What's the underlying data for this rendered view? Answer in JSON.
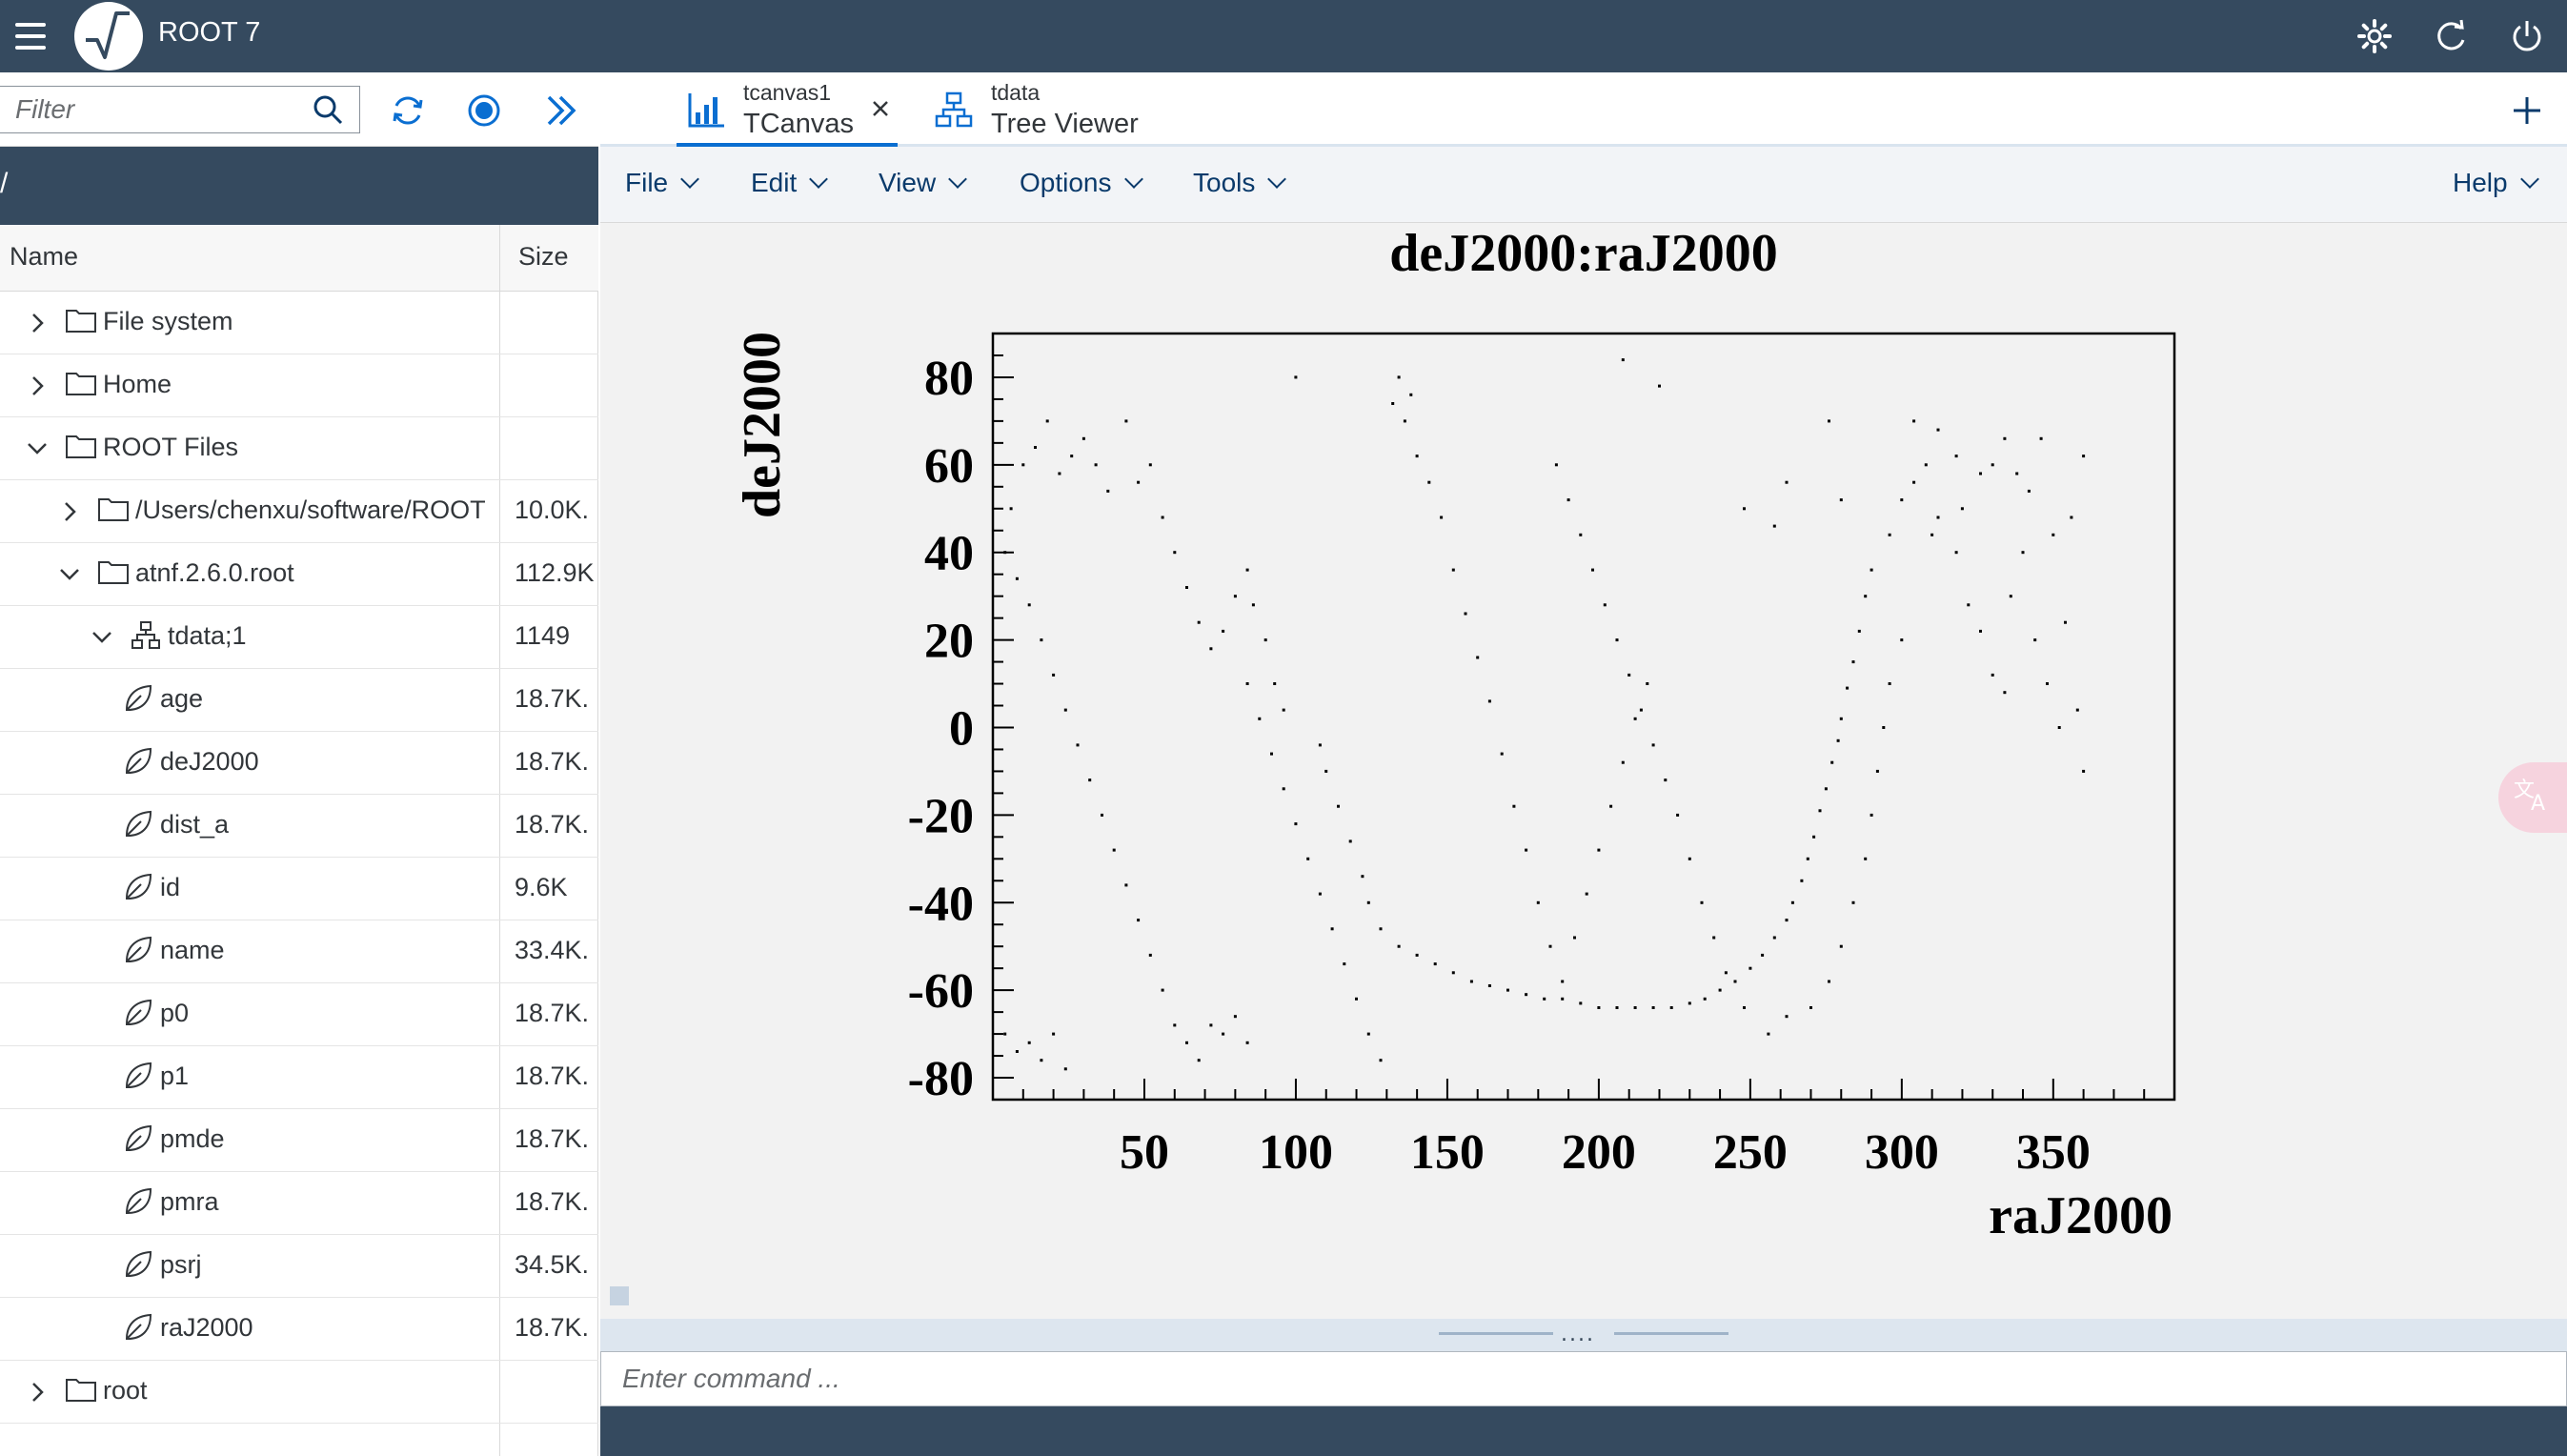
{
  "shell": {
    "title": "ROOT 7"
  },
  "toolbar": {
    "filter_placeholder": "Filter"
  },
  "path": "/",
  "tree": {
    "col_name": "Name",
    "col_size": "Size",
    "rows": [
      {
        "label": "File system",
        "size": "",
        "depth": 0,
        "expander": "collapsed",
        "icon": "folder-icon"
      },
      {
        "label": "Home",
        "size": "",
        "depth": 0,
        "expander": "collapsed",
        "icon": "folder-icon"
      },
      {
        "label": "ROOT Files",
        "size": "",
        "depth": 0,
        "expander": "expanded",
        "icon": "folder-icon"
      },
      {
        "label": "/Users/chenxu/software/ROOT",
        "size": "10.0K.",
        "depth": 1,
        "expander": "collapsed",
        "icon": "folder-icon"
      },
      {
        "label": "atnf.2.6.0.root",
        "size": "112.9K",
        "depth": 1,
        "expander": "expanded",
        "icon": "folder-icon"
      },
      {
        "label": "tdata;1",
        "size": "1149",
        "depth": 2,
        "expander": "expanded",
        "icon": "tree-icon"
      },
      {
        "label": "age",
        "size": "18.7K.",
        "depth": 3,
        "expander": "none",
        "icon": "leaf-icon"
      },
      {
        "label": "deJ2000",
        "size": "18.7K.",
        "depth": 3,
        "expander": "none",
        "icon": "leaf-icon"
      },
      {
        "label": "dist_a",
        "size": "18.7K.",
        "depth": 3,
        "expander": "none",
        "icon": "leaf-icon"
      },
      {
        "label": "id",
        "size": "9.6K",
        "depth": 3,
        "expander": "none",
        "icon": "leaf-icon"
      },
      {
        "label": "name",
        "size": "33.4K.",
        "depth": 3,
        "expander": "none",
        "icon": "leaf-icon"
      },
      {
        "label": "p0",
        "size": "18.7K.",
        "depth": 3,
        "expander": "none",
        "icon": "leaf-icon"
      },
      {
        "label": "p1",
        "size": "18.7K.",
        "depth": 3,
        "expander": "none",
        "icon": "leaf-icon"
      },
      {
        "label": "pmde",
        "size": "18.7K.",
        "depth": 3,
        "expander": "none",
        "icon": "leaf-icon"
      },
      {
        "label": "pmra",
        "size": "18.7K.",
        "depth": 3,
        "expander": "none",
        "icon": "leaf-icon"
      },
      {
        "label": "psrj",
        "size": "34.5K.",
        "depth": 3,
        "expander": "none",
        "icon": "leaf-icon"
      },
      {
        "label": "raJ2000",
        "size": "18.7K.",
        "depth": 3,
        "expander": "none",
        "icon": "leaf-icon"
      },
      {
        "label": "root",
        "size": "",
        "depth": 0,
        "expander": "collapsed",
        "icon": "folder-icon"
      }
    ]
  },
  "tabs": [
    {
      "sub": "tcanvas1",
      "main": "TCanvas",
      "icon": "bar-chart-icon",
      "active": true
    },
    {
      "sub": "tdata",
      "main": "Tree Viewer",
      "icon": "hierarchy-icon",
      "active": false
    }
  ],
  "menus": {
    "file": "File",
    "edit": "Edit",
    "view": "View",
    "options": "Options",
    "tools": "Tools",
    "help": "Help"
  },
  "command": {
    "placeholder": "Enter command ..."
  },
  "splitter": {
    "handle": "...."
  },
  "colors": {
    "shell": "#354a5f",
    "accent": "#0a6ed1",
    "menu_text": "#0a3a6b",
    "canvas_bg": "#f2f2f2"
  },
  "chart_data": {
    "type": "scatter",
    "title": "deJ2000:raJ2000",
    "xlabel": "raJ2000",
    "ylabel": "deJ2000",
    "xlim": [
      0,
      390
    ],
    "ylim": [
      -85,
      90
    ],
    "xticks": [
      50,
      100,
      150,
      200,
      250,
      300,
      350
    ],
    "yticks": [
      80,
      60,
      40,
      20,
      0,
      -20,
      -40,
      -60,
      -80
    ],
    "grid": false,
    "legend": "none",
    "points": [
      [
        290,
        36
      ],
      [
        288,
        30
      ],
      [
        286,
        22
      ],
      [
        284,
        15
      ],
      [
        282,
        9
      ],
      [
        280,
        2
      ],
      [
        279,
        -3
      ],
      [
        277,
        -8
      ],
      [
        275,
        -14
      ],
      [
        273,
        -19
      ],
      [
        271,
        -25
      ],
      [
        269,
        -30
      ],
      [
        267,
        -35
      ],
      [
        264,
        -40
      ],
      [
        262,
        -44
      ],
      [
        258,
        -48
      ],
      [
        254,
        -52
      ],
      [
        250,
        -55
      ],
      [
        245,
        -58
      ],
      [
        240,
        -60
      ],
      [
        235,
        -62
      ],
      [
        230,
        -63
      ],
      [
        224,
        -64
      ],
      [
        218,
        -64
      ],
      [
        212,
        -64
      ],
      [
        206,
        -64
      ],
      [
        200,
        -64
      ],
      [
        194,
        -63
      ],
      [
        188,
        -62
      ],
      [
        182,
        -62
      ],
      [
        176,
        -61
      ],
      [
        170,
        -60
      ],
      [
        164,
        -59
      ],
      [
        158,
        -58
      ],
      [
        152,
        -56
      ],
      [
        146,
        -54
      ],
      [
        140,
        -52
      ],
      [
        134,
        -50
      ],
      [
        128,
        -46
      ],
      [
        124,
        -40
      ],
      [
        122,
        -34
      ],
      [
        118,
        -26
      ],
      [
        114,
        -18
      ],
      [
        110,
        -10
      ],
      [
        108,
        -4
      ],
      [
        96,
        4
      ],
      [
        93,
        10
      ],
      [
        90,
        20
      ],
      [
        86,
        28
      ],
      [
        84,
        36
      ],
      [
        296,
        44
      ],
      [
        300,
        52
      ],
      [
        304,
        56
      ],
      [
        308,
        60
      ],
      [
        312,
        48
      ],
      [
        318,
        40
      ],
      [
        322,
        28
      ],
      [
        326,
        22
      ],
      [
        330,
        12
      ],
      [
        334,
        8
      ],
      [
        336,
        30
      ],
      [
        340,
        40
      ],
      [
        344,
        20
      ],
      [
        348,
        10
      ],
      [
        352,
        0
      ],
      [
        356,
        48
      ],
      [
        360,
        62
      ],
      [
        346,
        66
      ],
      [
        338,
        58
      ],
      [
        330,
        60
      ],
      [
        320,
        50
      ],
      [
        310,
        44
      ],
      [
        300,
        20
      ],
      [
        296,
        10
      ],
      [
        294,
        0
      ],
      [
        292,
        -10
      ],
      [
        290,
        -20
      ],
      [
        288,
        -30
      ],
      [
        284,
        -40
      ],
      [
        280,
        -50
      ],
      [
        276,
        -58
      ],
      [
        270,
        -64
      ],
      [
        262,
        -66
      ],
      [
        256,
        -70
      ],
      [
        248,
        -64
      ],
      [
        242,
        -56
      ],
      [
        238,
        -48
      ],
      [
        234,
        -40
      ],
      [
        230,
        -30
      ],
      [
        226,
        -20
      ],
      [
        222,
        -12
      ],
      [
        218,
        -4
      ],
      [
        214,
        4
      ],
      [
        210,
        12
      ],
      [
        206,
        20
      ],
      [
        202,
        28
      ],
      [
        198,
        36
      ],
      [
        194,
        44
      ],
      [
        190,
        52
      ],
      [
        186,
        60
      ],
      [
        10,
        60
      ],
      [
        14,
        64
      ],
      [
        18,
        70
      ],
      [
        22,
        58
      ],
      [
        26,
        62
      ],
      [
        30,
        66
      ],
      [
        34,
        60
      ],
      [
        38,
        54
      ],
      [
        6,
        50
      ],
      [
        4,
        40
      ],
      [
        8,
        34
      ],
      [
        12,
        28
      ],
      [
        16,
        20
      ],
      [
        20,
        12
      ],
      [
        24,
        4
      ],
      [
        28,
        -4
      ],
      [
        32,
        -12
      ],
      [
        36,
        -20
      ],
      [
        40,
        -28
      ],
      [
        44,
        -36
      ],
      [
        48,
        -44
      ],
      [
        52,
        -52
      ],
      [
        56,
        -60
      ],
      [
        60,
        -68
      ],
      [
        64,
        -72
      ],
      [
        68,
        -76
      ],
      [
        72,
        -68
      ],
      [
        76,
        -70
      ],
      [
        80,
        -66
      ],
      [
        84,
        -72
      ],
      [
        4,
        -70
      ],
      [
        8,
        -74
      ],
      [
        12,
        -72
      ],
      [
        16,
        -76
      ],
      [
        20,
        -70
      ],
      [
        24,
        -78
      ],
      [
        44,
        70
      ],
      [
        48,
        56
      ],
      [
        52,
        60
      ],
      [
        56,
        48
      ],
      [
        60,
        40
      ],
      [
        64,
        32
      ],
      [
        68,
        24
      ],
      [
        72,
        18
      ],
      [
        76,
        22
      ],
      [
        80,
        30
      ],
      [
        84,
        10
      ],
      [
        88,
        2
      ],
      [
        92,
        -6
      ],
      [
        96,
        -14
      ],
      [
        100,
        -22
      ],
      [
        104,
        -30
      ],
      [
        108,
        -38
      ],
      [
        112,
        -46
      ],
      [
        116,
        -54
      ],
      [
        120,
        -62
      ],
      [
        124,
        -70
      ],
      [
        128,
        -76
      ],
      [
        132,
        74
      ],
      [
        136,
        70
      ],
      [
        140,
        62
      ],
      [
        144,
        56
      ],
      [
        148,
        48
      ],
      [
        152,
        36
      ],
      [
        156,
        26
      ],
      [
        160,
        16
      ],
      [
        164,
        6
      ],
      [
        168,
        -6
      ],
      [
        172,
        -18
      ],
      [
        176,
        -28
      ],
      [
        180,
        -40
      ],
      [
        184,
        -50
      ],
      [
        188,
        -58
      ],
      [
        192,
        -48
      ],
      [
        196,
        -38
      ],
      [
        200,
        -28
      ],
      [
        204,
        -18
      ],
      [
        208,
        -8
      ],
      [
        212,
        2
      ],
      [
        216,
        10
      ],
      [
        100,
        80
      ],
      [
        134,
        80
      ],
      [
        138,
        76
      ],
      [
        208,
        84
      ],
      [
        220,
        78
      ],
      [
        248,
        50
      ],
      [
        258,
        46
      ],
      [
        262,
        56
      ],
      [
        276,
        70
      ],
      [
        280,
        52
      ],
      [
        304,
        70
      ],
      [
        312,
        68
      ],
      [
        318,
        62
      ],
      [
        326,
        58
      ],
      [
        334,
        66
      ],
      [
        342,
        54
      ],
      [
        350,
        44
      ],
      [
        354,
        24
      ],
      [
        358,
        4
      ],
      [
        360,
        -10
      ]
    ]
  }
}
